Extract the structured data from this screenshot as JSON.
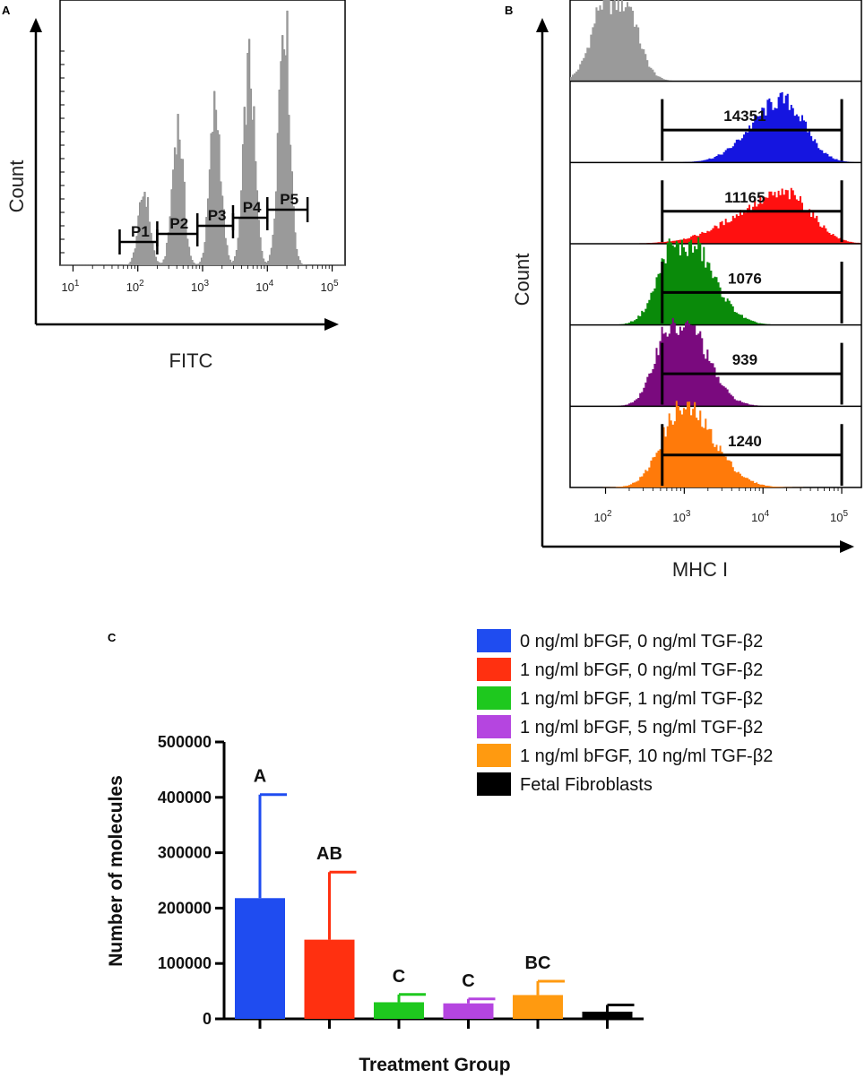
{
  "panels": {
    "a": "A",
    "b": "B",
    "c": "C"
  },
  "chart_data": [
    {
      "type": "area",
      "panel": "A",
      "xlabel": "FITC",
      "ylabel": "Count",
      "x_scale": "log",
      "xlim_exp": [
        0.8,
        5.2
      ],
      "x_ticks": [
        {
          "base": "10",
          "exp": "1",
          "value_exp": 1
        },
        {
          "base": "10",
          "exp": "2",
          "value_exp": 2
        },
        {
          "base": "10",
          "exp": "3",
          "value_exp": 3
        },
        {
          "base": "10",
          "exp": "4",
          "value_exp": 4
        },
        {
          "base": "10",
          "exp": "5",
          "value_exp": 5
        }
      ],
      "peaks": [
        {
          "center_exp": 2.1,
          "height": 0.28
        },
        {
          "center_exp": 2.62,
          "height": 0.53
        },
        {
          "center_exp": 3.2,
          "height": 0.6
        },
        {
          "center_exp": 3.72,
          "height": 0.75
        },
        {
          "center_exp": 4.26,
          "height": 0.97
        }
      ],
      "gates": [
        {
          "label": "P1",
          "from_exp": 1.72,
          "to_exp": 2.3
        },
        {
          "label": "P2",
          "from_exp": 2.3,
          "to_exp": 2.92
        },
        {
          "label": "P3",
          "from_exp": 2.92,
          "to_exp": 3.47
        },
        {
          "label": "P4",
          "from_exp": 3.47,
          "to_exp": 4.0
        },
        {
          "label": "P5",
          "from_exp": 4.0,
          "to_exp": 4.62
        }
      ],
      "color": "#9a9a9a"
    },
    {
      "type": "area",
      "panel": "B",
      "xlabel": "MHC I",
      "ylabel": "Count",
      "x_scale": "log",
      "xlim_exp": [
        1.55,
        5.25
      ],
      "x_ticks": [
        {
          "base": "10",
          "exp": "2",
          "value_exp": 2
        },
        {
          "base": "10",
          "exp": "3",
          "value_exp": 3
        },
        {
          "base": "10",
          "exp": "4",
          "value_exp": 4
        },
        {
          "base": "10",
          "exp": "5",
          "value_exp": 5
        }
      ],
      "gate_exp": [
        2.72,
        5.0
      ],
      "tracks": [
        {
          "label": "",
          "color": "#9a9a9a",
          "center_exp": 2.12,
          "width": 0.22,
          "skew": 0,
          "height": 0.95,
          "gated": false
        },
        {
          "label": "14351",
          "color": "#1515e0",
          "center_exp": 4.25,
          "width": 0.28,
          "skew": 0.4,
          "height": 0.5,
          "gated": true
        },
        {
          "label": "11165",
          "color": "#ff1010",
          "center_exp": 4.3,
          "width": 0.32,
          "skew": 0.9,
          "height": 0.4,
          "gated": true
        },
        {
          "label": "1076",
          "color": "#0a8a0a",
          "center_exp": 2.95,
          "width": 0.24,
          "skew": -0.5,
          "height": 0.78,
          "gated": true
        },
        {
          "label": "939",
          "color": "#7a0a7e",
          "center_exp": 2.9,
          "width": 0.22,
          "skew": -0.5,
          "height": 0.83,
          "gated": true
        },
        {
          "label": "1240",
          "color": "#ff7a0a",
          "center_exp": 2.98,
          "width": 0.26,
          "skew": -0.5,
          "height": 0.65,
          "gated": true
        }
      ]
    },
    {
      "type": "bar",
      "panel": "C",
      "xlabel": "Treatment Group",
      "ylabel": "Number of molecules",
      "ylim": [
        0,
        500000
      ],
      "y_ticks": [
        "0",
        "100000",
        "200000",
        "300000",
        "400000",
        "500000"
      ],
      "y_tick_values": [
        0,
        100000,
        200000,
        300000,
        400000,
        500000
      ],
      "series": [
        {
          "name": "0 ng/ml bFGF, 0 ng/ml TGF-β2",
          "value": 218000,
          "error": 187000,
          "color": "#1f4cf0",
          "letter": "A"
        },
        {
          "name": "1 ng/ml bFGF, 0 ng/ml TGF-β2",
          "value": 143000,
          "error": 122000,
          "color": "#ff3010",
          "letter": "AB"
        },
        {
          "name": "1 ng/ml bFGF, 1 ng/ml TGF-β2",
          "value": 30000,
          "error": 14000,
          "color": "#1ec81e",
          "letter": "C"
        },
        {
          "name": "1 ng/ml bFGF, 5 ng/ml TGF-β2",
          "value": 28000,
          "error": 8000,
          "color": "#b545e0",
          "letter": "C"
        },
        {
          "name": "1 ng/ml bFGF, 10 ng/ml TGF-β2",
          "value": 43000,
          "error": 25000,
          "color": "#ff9a10",
          "letter": "BC"
        },
        {
          "name": "Fetal Fibroblasts",
          "value": 13000,
          "error": 12000,
          "color": "#000000",
          "letter": ""
        }
      ]
    }
  ]
}
